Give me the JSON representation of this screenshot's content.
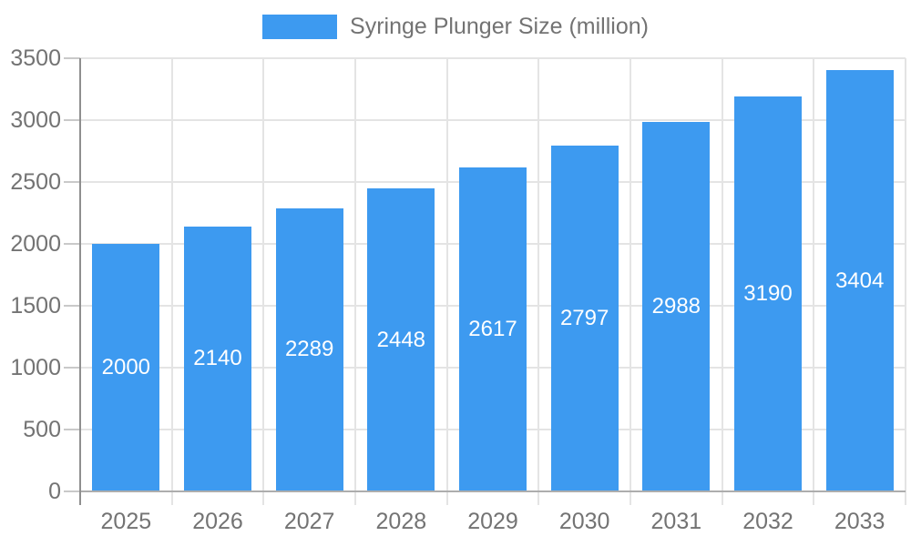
{
  "chart_data": {
    "type": "bar",
    "legend": {
      "label": "Syringe Plunger Size (million)",
      "position": "top-center"
    },
    "categories": [
      "2025",
      "2026",
      "2027",
      "2028",
      "2029",
      "2030",
      "2031",
      "2032",
      "2033"
    ],
    "series": [
      {
        "name": "Syringe Plunger Size (million)",
        "values": [
          2000,
          2140,
          2289,
          2448,
          2617,
          2797,
          2988,
          3190,
          3404
        ]
      }
    ],
    "bar_value_labels": true,
    "xlabel": "",
    "ylabel": "",
    "ylim": [
      0,
      3500
    ],
    "yticks": [
      0,
      500,
      1000,
      1500,
      2000,
      2500,
      3000,
      3500
    ],
    "grid": true,
    "colors": {
      "bar": "#3D9AF0",
      "bar_label": "#FFFFFF",
      "axis_text": "#737373",
      "grid_line": "#E4E4E4",
      "axis_line": "#8F8F8F",
      "baseline": "#ADADAD",
      "tick_line": "#C9C9C9",
      "background": "#FFFFFF"
    }
  }
}
